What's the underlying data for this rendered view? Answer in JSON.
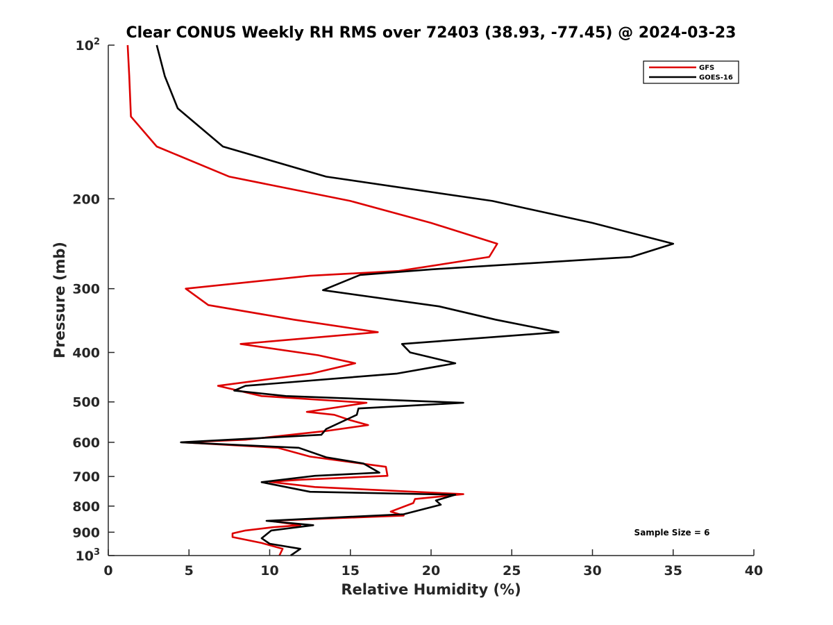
{
  "chart_data": {
    "type": "line",
    "title": "Clear CONUS Weekly RH RMS over 72403 (38.93, -77.45) @ 2024-03-23",
    "xlabel": "Relative Humidity (%)",
    "ylabel": "Pressure (mb)",
    "xlim": [
      0,
      40
    ],
    "ylim": [
      100,
      1000
    ],
    "y_scale": "log",
    "y_reversed": true,
    "grid": false,
    "legend_position": "top-right",
    "x_ticks": [
      "0",
      "5",
      "10",
      "15",
      "20",
      "25",
      "30",
      "35",
      "40"
    ],
    "y_ticks": [
      {
        "value": 100,
        "base": "10",
        "exp": "2"
      },
      {
        "value": 200,
        "label": "200"
      },
      {
        "value": 300,
        "label": "300"
      },
      {
        "value": 400,
        "label": "400"
      },
      {
        "value": 500,
        "label": "500"
      },
      {
        "value": 600,
        "label": "600"
      },
      {
        "value": 700,
        "label": "700"
      },
      {
        "value": 800,
        "label": "800"
      },
      {
        "value": 900,
        "label": "900"
      },
      {
        "value": 1000,
        "base": "10",
        "exp": "3"
      }
    ],
    "series": [
      {
        "name": "GFS",
        "color": "#dd0000",
        "points": [
          [
            1.2,
            100
          ],
          [
            1.3,
            115
          ],
          [
            1.4,
            138
          ],
          [
            3.0,
            158
          ],
          [
            7.5,
            181
          ],
          [
            15.0,
            202
          ],
          [
            20.0,
            223
          ],
          [
            24.1,
            245
          ],
          [
            23.6,
            260
          ],
          [
            18.0,
            277
          ],
          [
            12.5,
            283
          ],
          [
            4.8,
            300
          ],
          [
            6.2,
            323
          ],
          [
            11.5,
            345
          ],
          [
            16.7,
            365
          ],
          [
            8.2,
            385
          ],
          [
            13.0,
            405
          ],
          [
            15.3,
            420
          ],
          [
            12.6,
            440
          ],
          [
            6.8,
            465
          ],
          [
            9.5,
            487
          ],
          [
            16.0,
            502
          ],
          [
            12.3,
            523
          ],
          [
            14.0,
            530
          ],
          [
            15.0,
            543
          ],
          [
            16.1,
            555
          ],
          [
            13.5,
            570
          ],
          [
            8.5,
            593
          ],
          [
            4.6,
            600
          ],
          [
            10.5,
            615
          ],
          [
            12.5,
            640
          ],
          [
            17.2,
            670
          ],
          [
            17.3,
            698
          ],
          [
            12.0,
            710
          ],
          [
            10.0,
            717
          ],
          [
            12.8,
            734
          ],
          [
            22.0,
            758
          ],
          [
            19.0,
            775
          ],
          [
            18.9,
            789
          ],
          [
            17.5,
            820
          ],
          [
            18.3,
            835
          ],
          [
            10.0,
            855
          ],
          [
            11.9,
            872
          ],
          [
            10.2,
            880
          ],
          [
            8.5,
            893
          ],
          [
            7.7,
            905
          ],
          [
            7.7,
            920
          ],
          [
            9.5,
            945
          ],
          [
            10.8,
            970
          ],
          [
            10.6,
            1000
          ]
        ]
      },
      {
        "name": "GOES-16",
        "color": "#000000",
        "points": [
          [
            3.0,
            100
          ],
          [
            3.5,
            115
          ],
          [
            4.3,
            133
          ],
          [
            7.1,
            158
          ],
          [
            13.5,
            181
          ],
          [
            23.8,
            202
          ],
          [
            30.0,
            223
          ],
          [
            35.0,
            245
          ],
          [
            32.4,
            260
          ],
          [
            20.0,
            275
          ],
          [
            15.6,
            282
          ],
          [
            13.3,
            302
          ],
          [
            20.5,
            325
          ],
          [
            24.0,
            345
          ],
          [
            27.9,
            365
          ],
          [
            18.2,
            385
          ],
          [
            18.7,
            400
          ],
          [
            21.5,
            420
          ],
          [
            17.9,
            440
          ],
          [
            8.5,
            465
          ],
          [
            7.8,
            475
          ],
          [
            11.0,
            487
          ],
          [
            22.0,
            502
          ],
          [
            15.5,
            515
          ],
          [
            15.4,
            530
          ],
          [
            13.5,
            565
          ],
          [
            13.2,
            580
          ],
          [
            4.5,
            600
          ],
          [
            11.8,
            615
          ],
          [
            13.5,
            642
          ],
          [
            15.8,
            660
          ],
          [
            16.8,
            688
          ],
          [
            12.8,
            698
          ],
          [
            9.5,
            718
          ],
          [
            12.5,
            750
          ],
          [
            21.5,
            760
          ],
          [
            20.3,
            780
          ],
          [
            20.6,
            795
          ],
          [
            18.3,
            830
          ],
          [
            9.8,
            855
          ],
          [
            12.7,
            872
          ],
          [
            10.1,
            893
          ],
          [
            9.5,
            925
          ],
          [
            10.0,
            948
          ],
          [
            11.9,
            970
          ],
          [
            11.3,
            1000
          ]
        ]
      }
    ],
    "annotation": "Sample Size = 6"
  }
}
